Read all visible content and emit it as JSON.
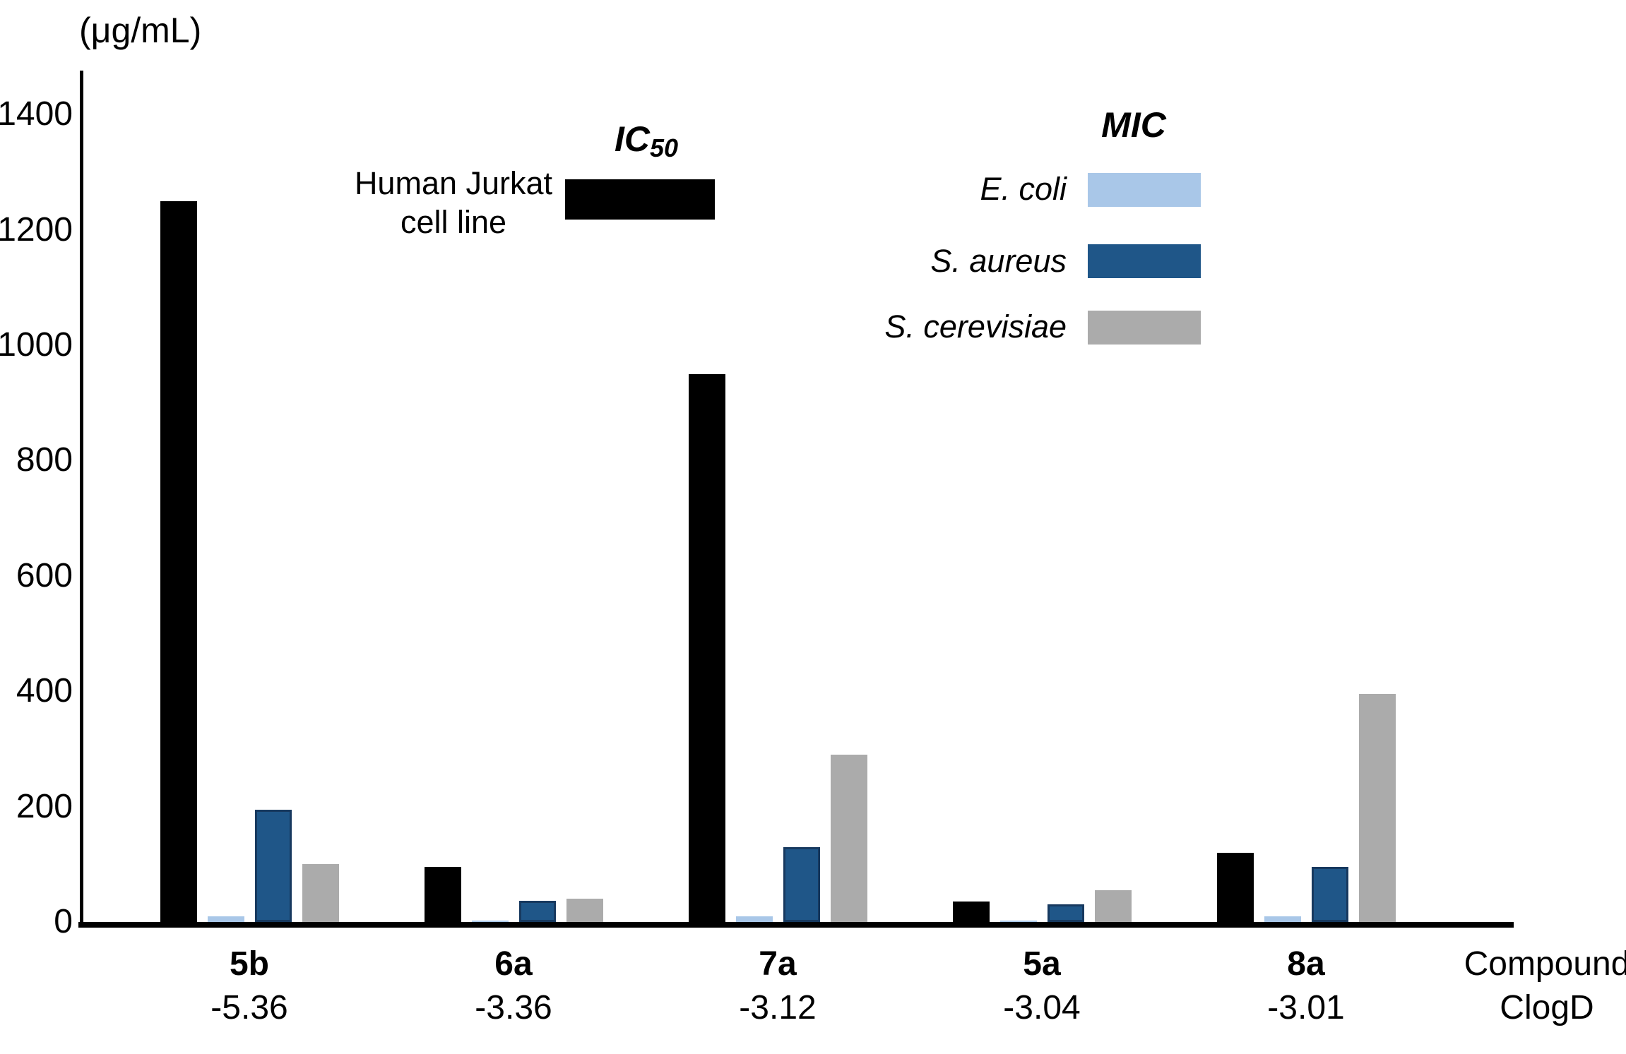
{
  "chart_data": {
    "type": "bar",
    "unit_label": "(μg/mL)",
    "y_axis": {
      "min": 0,
      "max": 1400,
      "tick_step": 200,
      "ticks": [
        1400,
        1200,
        1000,
        800,
        600,
        400,
        200,
        0
      ]
    },
    "x_caption": {
      "line1": "Compound",
      "line2": "ClogD"
    },
    "categories": [
      "5b",
      "6a",
      "7a",
      "5a",
      "8a"
    ],
    "clogd_values": [
      "-5.36",
      "-3.36",
      "-3.12",
      "-3.04",
      "-3.01"
    ],
    "series": [
      {
        "key": "ic50-human-jurkat",
        "group": "IC50",
        "name": "Human Jurkat cell line",
        "color": "#000000",
        "values": [
          1250,
          95,
          950,
          35,
          120
        ]
      },
      {
        "key": "mic-e-coli",
        "group": "MIC",
        "name": "E. coli",
        "color": "#A9C7E8",
        "values": [
          10,
          2,
          10,
          3,
          10
        ]
      },
      {
        "key": "mic-s-aureus",
        "group": "MIC",
        "name": "S. aureus",
        "color": "#1F5688",
        "border_color": "#17395F",
        "values": [
          195,
          37,
          130,
          30,
          95
        ]
      },
      {
        "key": "mic-s-cerevisiae",
        "group": "MIC",
        "name": "S. cerevisiae",
        "color": "#ABABAB",
        "values": [
          100,
          40,
          290,
          55,
          395
        ]
      }
    ],
    "grid": "off",
    "legend_position": "top"
  },
  "legend": {
    "ic50": {
      "title_main": "IC",
      "title_sub": "50",
      "entry_line1": "Human Jurkat",
      "entry_line2": "cell line",
      "swatch_color": "#000000"
    },
    "mic": {
      "title": "MIC",
      "entries": [
        {
          "label": "E. coli",
          "color": "#A9C7E8"
        },
        {
          "label": "S. aureus",
          "color": "#1F5688"
        },
        {
          "label": "S. cerevisiae",
          "color": "#ABABAB"
        }
      ]
    }
  }
}
